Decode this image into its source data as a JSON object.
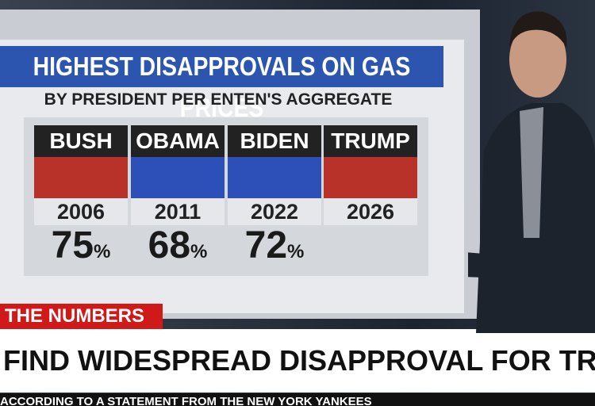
{
  "graphic": {
    "title": "HIGHEST DISAPPROVALS ON GAS PRICES",
    "subtitle": "BY PRESIDENT PER ENTEN'S AGGREGATE",
    "presidents": [
      {
        "name": "BUSH",
        "year": "2006",
        "percent": "75",
        "percent_sign": "%"
      },
      {
        "name": "OBAMA",
        "year": "2011",
        "percent": "68",
        "percent_sign": "%"
      },
      {
        "name": "BIDEN",
        "year": "2022",
        "percent": "72",
        "percent_sign": "%"
      },
      {
        "name": "TRUMP",
        "year": "2026"
      }
    ]
  },
  "chyron": {
    "tag": "THE NUMBERS",
    "headline": "FIND WIDESPREAD DISAPPROVAL FOR TRUMP ON GAS PRICES",
    "ticker": "ACCORDING TO A STATEMENT FROM THE NEW YORK YANKEES"
  }
}
